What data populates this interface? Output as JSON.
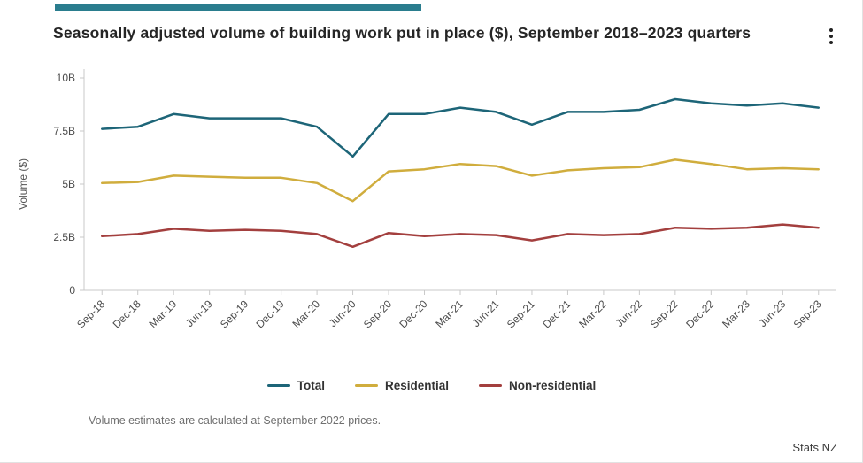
{
  "header": {
    "menu_icon": "kebab-menu-icon"
  },
  "accent_color": "#2a7d8e",
  "chart_data": {
    "type": "line",
    "title": "Seasonally adjusted volume of building work put in place ($), September 2018–2023 quarters",
    "xlabel": "",
    "ylabel": "Volume ($)",
    "units": "$ billions",
    "ylim": [
      0,
      10
    ],
    "ytick_values": [
      0,
      2.5,
      5,
      7.5,
      10
    ],
    "ytick_labels": [
      "0",
      "2.5B",
      "5B",
      "7.5B",
      "10B"
    ],
    "grid": false,
    "legend_position": "bottom",
    "categories": [
      "Sep-18",
      "Dec-18",
      "Mar-19",
      "Jun-19",
      "Sep-19",
      "Dec-19",
      "Mar-20",
      "Jun-20",
      "Sep-20",
      "Dec-20",
      "Mar-21",
      "Jun-21",
      "Sep-21",
      "Dec-21",
      "Mar-22",
      "Jun-22",
      "Sep-22",
      "Dec-22",
      "Mar-23",
      "Jun-23",
      "Sep-23"
    ],
    "series": [
      {
        "name": "Total",
        "color": "#1d6578",
        "values": [
          7.6,
          7.7,
          8.3,
          8.1,
          8.1,
          8.1,
          7.7,
          6.3,
          8.3,
          8.3,
          8.6,
          8.4,
          7.8,
          8.4,
          8.4,
          8.5,
          9.0,
          8.8,
          8.7,
          8.8,
          8.6
        ]
      },
      {
        "name": "Residential",
        "color": "#d0ad3d",
        "values": [
          5.05,
          5.1,
          5.4,
          5.35,
          5.3,
          5.3,
          5.05,
          4.2,
          5.6,
          5.7,
          5.95,
          5.85,
          5.4,
          5.65,
          5.75,
          5.8,
          6.15,
          5.95,
          5.7,
          5.75,
          5.7
        ]
      },
      {
        "name": "Non-residential",
        "color": "#a33f3e",
        "values": [
          2.55,
          2.65,
          2.9,
          2.8,
          2.85,
          2.8,
          2.65,
          2.05,
          2.7,
          2.55,
          2.65,
          2.6,
          2.35,
          2.65,
          2.6,
          2.65,
          2.95,
          2.9,
          2.95,
          3.1,
          2.95
        ]
      }
    ]
  },
  "footnote": "Volume estimates are calculated at September 2022 prices.",
  "source": "Stats NZ"
}
